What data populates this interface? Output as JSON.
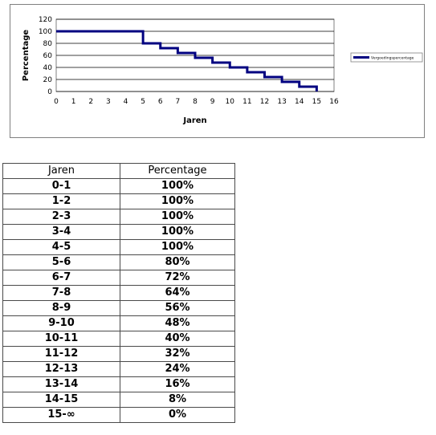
{
  "chart_data": {
    "type": "line",
    "step": true,
    "xlabel": "Jaren",
    "ylabel": "Percentage",
    "xlim": [
      0,
      16
    ],
    "ylim": [
      0,
      120
    ],
    "x_ticks": [
      "0",
      "1",
      "2",
      "3",
      "4",
      "5",
      "6",
      "7",
      "8",
      "9",
      "10",
      "11",
      "12",
      "13",
      "14",
      "15",
      "16"
    ],
    "y_ticks": [
      "0",
      "20",
      "40",
      "60",
      "80",
      "100",
      "120"
    ],
    "grid": "horizontal",
    "legend_position": "right",
    "series": [
      {
        "name": "Vergoedingspercentage",
        "color": "#000080",
        "x": [
          0,
          1,
          2,
          3,
          4,
          5,
          6,
          7,
          8,
          9,
          10,
          11,
          12,
          13,
          14,
          15
        ],
        "y": [
          100,
          100,
          100,
          100,
          100,
          80,
          72,
          64,
          56,
          48,
          40,
          32,
          24,
          16,
          8,
          0
        ]
      }
    ]
  },
  "table": {
    "headers": [
      "Jaren",
      "Percentage"
    ],
    "rows": [
      [
        "0-1",
        "100%"
      ],
      [
        "1-2",
        "100%"
      ],
      [
        "2-3",
        "100%"
      ],
      [
        "3-4",
        "100%"
      ],
      [
        "4-5",
        "100%"
      ],
      [
        "5-6",
        "80%"
      ],
      [
        "6-7",
        "72%"
      ],
      [
        "7-8",
        "64%"
      ],
      [
        "8-9",
        "56%"
      ],
      [
        "9-10",
        "48%"
      ],
      [
        "10-11",
        "40%"
      ],
      [
        "11-12",
        "32%"
      ],
      [
        "12-13",
        "24%"
      ],
      [
        "13-14",
        "16%"
      ],
      [
        "14-15",
        "8%"
      ],
      [
        "15-∞",
        "0%"
      ]
    ]
  }
}
